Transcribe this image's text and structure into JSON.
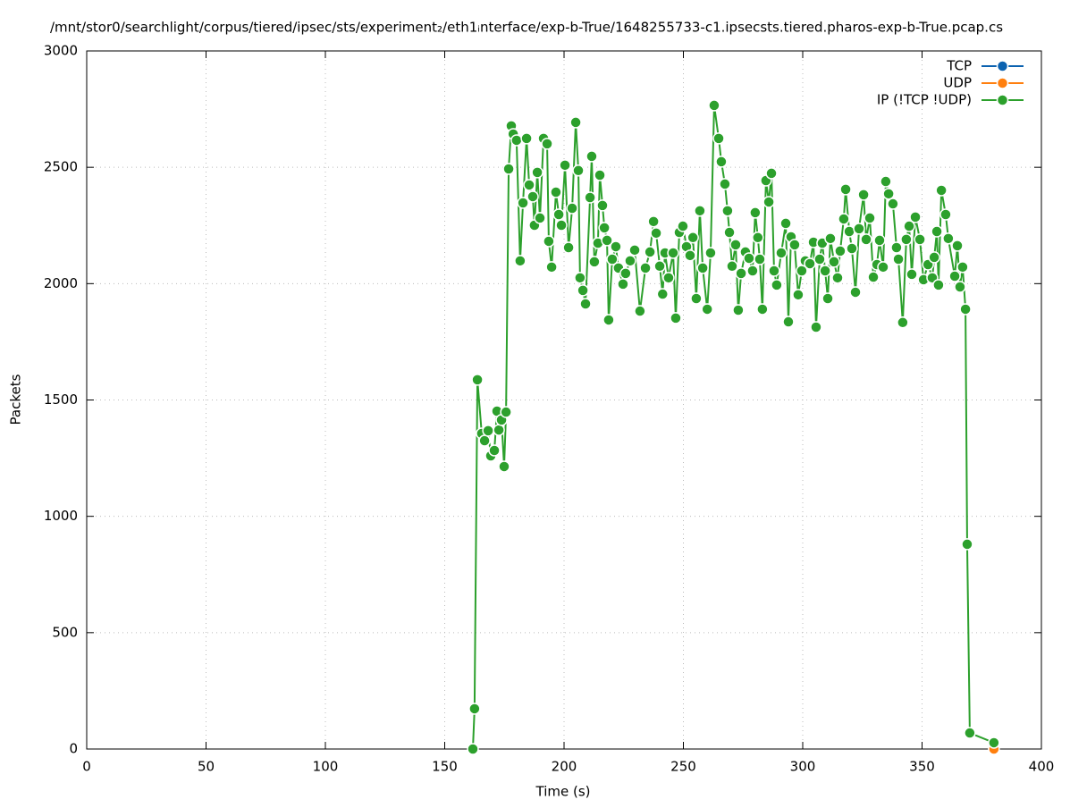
{
  "chart_data": {
    "type": "line",
    "title": "/mnt/stor0/searchlight/corpus/tiered/ipsec/sts/experiment₂/eth1ᵢnterface/exp-b-True/1648255733-c1.ipsecsts.tiered.pharos-exp-b-True.pcap.cs",
    "xlabel": "Time (s)",
    "ylabel": "Packets",
    "xlim": [
      0,
      400
    ],
    "xticks": [
      0,
      50,
      100,
      150,
      200,
      250,
      300,
      350,
      400
    ],
    "ylim": [
      0,
      3000
    ],
    "yticks": [
      0,
      500,
      1000,
      1500,
      2000,
      2500,
      3000
    ],
    "grid": true,
    "legend": "top-right",
    "series": [
      {
        "name": "TCP",
        "color": "#0b62b0",
        "x": [],
        "values": []
      },
      {
        "name": "UDP",
        "color": "#ff7f0e",
        "x": [
          380.1
        ],
        "values": [
          0
        ]
      },
      {
        "name": "IP (!TCP  !UDP)",
        "color": "#2ca02c",
        "x": [
          161.8,
          162.5,
          163.7,
          165.5,
          166.7,
          168.2,
          169.3,
          170.8,
          171.9,
          172.7,
          173.8,
          174.9,
          175.7,
          176.8,
          177.9,
          178.7,
          180.1,
          181.6,
          182.8,
          184.3,
          185.4,
          186.9,
          187.6,
          188.8,
          189.9,
          191.4,
          192.9,
          193.6,
          194.8,
          196.6,
          197.8,
          198.9,
          200.4,
          201.9,
          203.4,
          204.9,
          206.0,
          206.7,
          207.9,
          209.0,
          210.9,
          211.6,
          212.7,
          214.2,
          215.0,
          216.1,
          216.9,
          218.0,
          218.7,
          220.2,
          221.7,
          222.8,
          224.7,
          225.8,
          227.7,
          229.6,
          231.8,
          234.1,
          236.0,
          237.5,
          238.6,
          240.1,
          241.3,
          242.3,
          243.8,
          245.7,
          246.8,
          248.3,
          249.8,
          251.3,
          252.8,
          254.0,
          255.4,
          256.9,
          258.1,
          260.0,
          261.4,
          262.9,
          264.8,
          265.9,
          267.4,
          268.5,
          269.3,
          270.4,
          271.9,
          273.0,
          274.2,
          276.0,
          277.5,
          279.0,
          280.1,
          281.2,
          282.0,
          283.1,
          284.6,
          285.8,
          286.9,
          288.0,
          289.1,
          291.0,
          292.9,
          294.0,
          295.1,
          296.6,
          298.1,
          299.6,
          301.1,
          303.0,
          304.5,
          305.6,
          307.1,
          308.2,
          309.4,
          310.5,
          311.6,
          313.1,
          314.6,
          315.7,
          317.2,
          318.0,
          319.5,
          320.6,
          322.1,
          323.6,
          325.5,
          326.6,
          328.1,
          329.6,
          331.1,
          332.2,
          333.7,
          334.8,
          336.0,
          337.8,
          339.3,
          340.1,
          341.9,
          343.4,
          344.6,
          345.7,
          347.2,
          349.1,
          350.6,
          352.5,
          354.3,
          355.1,
          356.2,
          356.9,
          358.1,
          359.9,
          361.0,
          363.7,
          364.8,
          365.9,
          367.0,
          368.2,
          368.9,
          370.0,
          380.1
        ],
        "values": [
          0,
          173,
          1587,
          1356,
          1325,
          1368,
          1260,
          1283,
          1452,
          1371,
          1414,
          1214,
          1448,
          2493,
          2678,
          2643,
          2616,
          2098,
          2347,
          2624,
          2424,
          2374,
          2251,
          2478,
          2282,
          2624,
          2601,
          2182,
          2071,
          2393,
          2297,
          2251,
          2509,
          2155,
          2324,
          2693,
          2486,
          2025,
          1971,
          1913,
          2370,
          2547,
          2094,
          2174,
          2466,
          2336,
          2240,
          2186,
          1844,
          2105,
          2159,
          2067,
          1998,
          2044,
          2098,
          2144,
          1882,
          2067,
          2136,
          2267,
          2217,
          2075,
          1955,
          2132,
          2025,
          2132,
          1852,
          2220,
          2247,
          2159,
          2121,
          2198,
          1936,
          2313,
          2067,
          1890,
          2132,
          2766,
          2624,
          2524,
          2428,
          2313,
          2220,
          2075,
          2167,
          1886,
          2044,
          2136,
          2109,
          2055,
          2305,
          2198,
          2105,
          1890,
          2443,
          2351,
          2474,
          2055,
          1994,
          2132,
          2259,
          1836,
          2201,
          2167,
          1952,
          2055,
          2098,
          2086,
          2178,
          1813,
          2105,
          2174,
          2055,
          1936,
          2194,
          2094,
          2025,
          2140,
          2278,
          2405,
          2224,
          2151,
          1963,
          2236,
          2382,
          2190,
          2282,
          2028,
          2082,
          2186,
          2071,
          2439,
          2386,
          2343,
          2155,
          2105,
          1833,
          2190,
          2247,
          2040,
          2286,
          2190,
          2017,
          2082,
          2025,
          2113,
          2224,
          1994,
          2401,
          2297,
          2194,
          2032,
          2163,
          1986,
          2071,
          1890,
          880,
          69,
          27
        ]
      }
    ]
  }
}
